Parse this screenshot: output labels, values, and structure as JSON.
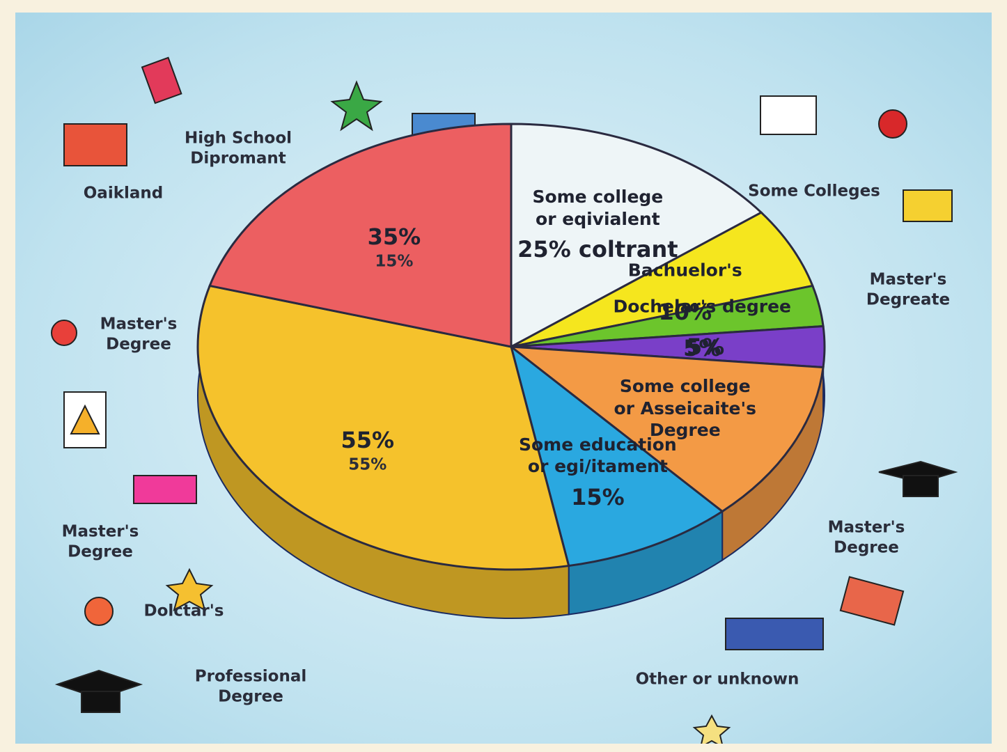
{
  "chart_data": {
    "type": "pie",
    "categories": [
      "Some college\nor eqivialent",
      "Bachuelor's",
      "Dochelar's degree",
      null,
      "Some college\nor Asseicaite's\nDegree",
      "Some education\nor egi/itament",
      null,
      null
    ],
    "values": [
      25,
      10,
      5,
      5,
      20,
      15,
      55,
      35
    ],
    "value_labels": [
      "25% coltrant",
      "10%",
      "5%",
      "5%",
      null,
      "15%",
      "55%",
      "35%"
    ],
    "colors": [
      "#eef5f7",
      "#f5e61e",
      "#6cc52c",
      "#7a3fc8",
      "#f39a45",
      "#2aa8e0",
      "#f5c22c",
      "#ec5f61"
    ],
    "annotations": [
      "High School\nDipromant",
      "Oaikland",
      "Master's\nDegree",
      "Master's\nDegree",
      "Dolctar's",
      "Professional\nDegree",
      "Other or unknown",
      "Master's\nDegree",
      "Master's\nDegreate",
      "Some Colleges",
      "55%",
      "15%"
    ]
  }
}
